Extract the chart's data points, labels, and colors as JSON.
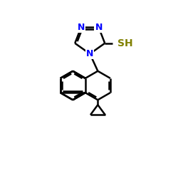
{
  "title": "",
  "background_color": "#ffffff",
  "atom_color_N": "#0000ff",
  "atom_color_S": "#808000",
  "atom_color_C": "#000000",
  "line_color": "#000000",
  "line_width": 1.8,
  "font_size_atom": 9,
  "figsize": [
    2.5,
    2.5
  ],
  "dpi": 100,
  "xlim": [
    0,
    10
  ],
  "ylim": [
    0,
    10
  ]
}
